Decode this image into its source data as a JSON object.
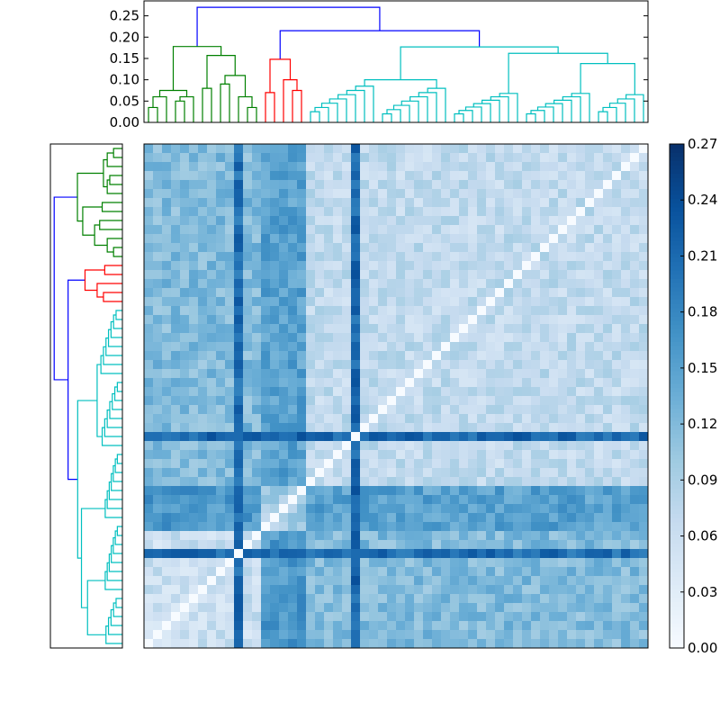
{
  "chart_data": [
    {
      "type": "dendrogram",
      "orientation": "top",
      "ylim": [
        0,
        0.285
      ],
      "yticks": [
        0.0,
        0.05,
        0.1,
        0.15,
        0.2,
        0.25
      ],
      "ytick_labels": [
        "0.00",
        "0.05",
        "0.10",
        "0.15",
        "0.20",
        "0.25"
      ],
      "cluster_colors": {
        "green": "#008000",
        "red": "#ff0000",
        "cyan": "#00bfbf",
        "root": "#0000ff"
      },
      "merge_heights": {
        "root": 0.27,
        "blue_right": 0.215,
        "green_root": 0.178,
        "green_left": 0.093,
        "green_right": 0.157,
        "red_root": 0.148,
        "cyan_root": 0.177,
        "cyan_big": 0.162,
        "cyan_mid": 0.138,
        "cyan_subtree_a": 0.1,
        "cyan_subtree_b": 0.09,
        "cyan_subtree_c": 0.08
      }
    },
    {
      "type": "heatmap",
      "rows": 56,
      "cols": 56,
      "colormap": "Blues",
      "vmin": 0.0,
      "vmax": 0.27,
      "diagonal": 0.0,
      "note_values": "symmetric distance matrix ordered by dendrogram leaves",
      "cluster_sizes": {
        "green": 13,
        "red": 5,
        "cyan": 38
      },
      "typical_values": {
        "within_green": 0.06,
        "within_red": 0.09,
        "within_cyan": 0.07,
        "green_red": 0.16,
        "green_cyan": 0.12,
        "red_cyan": 0.15
      },
      "hot_leaves": {
        "col_10": 0.21,
        "col_23": 0.22
      }
    },
    {
      "type": "colorbar",
      "ticks": [
        0.0,
        0.03,
        0.06,
        0.09,
        0.12,
        0.15,
        0.18,
        0.21,
        0.24,
        0.27
      ],
      "tick_labels": [
        "0.00",
        "0.03",
        "0.06",
        "0.09",
        "0.12",
        "0.15",
        "0.18",
        "0.21",
        "0.24",
        "0.27"
      ]
    }
  ]
}
